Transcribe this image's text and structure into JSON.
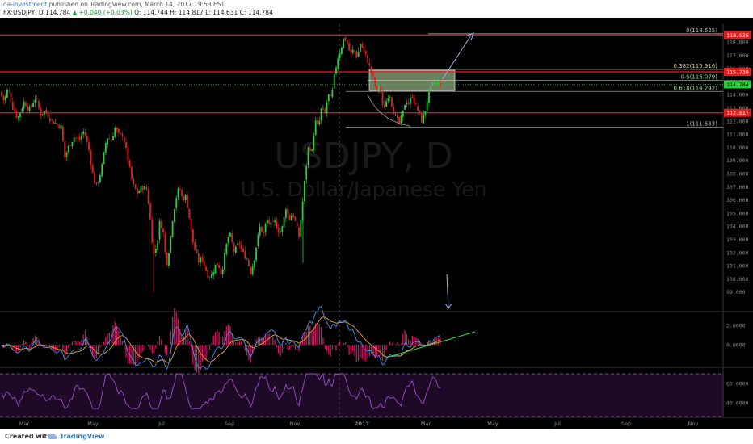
{
  "header": {
    "author": "oa-investment",
    "published": "published on TradingView.com, March 14, 2017 19:53 EST",
    "symbol": "FX:USDJPY, D",
    "last": "114.784",
    "change": "▲ +0.040 (+0.03%)",
    "ohlc": "O: 114.744  H: 114.817  L: 114.631  C: 114.784"
  },
  "watermark": {
    "symbol": "USDJPY, D",
    "name": "U.S. Dollar/Japanese Yen"
  },
  "footer": {
    "created_with": "Created with",
    "brand": "TradingView"
  },
  "colors": {
    "up": "#2ecc40",
    "down": "#e02020",
    "level": "#e02020",
    "fib": "#9a9a9a",
    "arrow": "#9db6e4",
    "macd": "#4a90e2",
    "signal": "#f0a030",
    "hist": "#c81d64",
    "rsi": "#9b4fc8",
    "box": "#c9e6b0"
  },
  "chart_data": [
    {
      "type": "candlestick",
      "ylim": [
        98.5,
        119.2
      ],
      "y_ticks": [
        "118.000",
        "117.000",
        "116.000",
        "115.000",
        "114.000",
        "113.000",
        "112.000",
        "111.000",
        "110.000",
        "109.000",
        "108.000",
        "107.000",
        "106.000",
        "105.000",
        "104.000",
        "103.000",
        "102.000",
        "101.000",
        "100.000",
        "99.000"
      ],
      "x_labels": [
        "Mar",
        "May",
        "Jul",
        "Sep",
        "Nov",
        "2017",
        "Mar",
        "May",
        "Jul",
        "Sep",
        "Nov"
      ],
      "horizontal_levels": [
        {
          "label": "118.536",
          "value": 118.536
        },
        {
          "label": "115.730",
          "value": 115.73
        },
        {
          "label": "112.617",
          "value": 112.617
        }
      ],
      "price_label": {
        "label": "114.784",
        "value": 114.784
      },
      "fibonacci": [
        {
          "label": "0(118.625)",
          "value": 118.625
        },
        {
          "label": "0.382(115.916)",
          "value": 115.916
        },
        {
          "label": "0.5(115.079)",
          "value": 115.079
        },
        {
          "label": "0.618(114.242)",
          "value": 114.242
        },
        {
          "label": "1(111.533)",
          "value": 111.533
        }
      ],
      "series_path": [
        [
          0,
          114.2
        ],
        [
          5,
          113.5
        ],
        [
          10,
          114.5
        ],
        [
          16,
          113.0
        ],
        [
          22,
          112.2
        ],
        [
          30,
          113.5
        ],
        [
          36,
          112.8
        ],
        [
          44,
          113.8
        ],
        [
          50,
          112.5
        ],
        [
          56,
          112.8
        ],
        [
          64,
          112.0
        ],
        [
          70,
          111.8
        ],
        [
          76,
          111.5
        ],
        [
          80,
          109.2
        ],
        [
          86,
          110.2
        ],
        [
          92,
          110.8
        ],
        [
          98,
          110.5
        ],
        [
          104,
          111.3
        ],
        [
          110,
          109.8
        ],
        [
          116,
          107.5
        ],
        [
          120,
          107.0
        ],
        [
          126,
          108.5
        ],
        [
          132,
          110.8
        ],
        [
          138,
          110.5
        ],
        [
          142,
          111.5
        ],
        [
          148,
          110.8
        ],
        [
          152,
          111.0
        ],
        [
          158,
          109.2
        ],
        [
          164,
          107.2
        ],
        [
          170,
          106.5
        ],
        [
          176,
          107.0
        ],
        [
          182,
          106.8
        ],
        [
          186,
          104.5
        ],
        [
          190,
          101.8
        ],
        [
          194,
          102.5
        ],
        [
          198,
          104.5
        ],
        [
          202,
          103.5
        ],
        [
          206,
          101.0
        ],
        [
          210,
          102.5
        ],
        [
          214,
          104.8
        ],
        [
          218,
          106.2
        ],
        [
          222,
          107.0
        ],
        [
          226,
          106.0
        ],
        [
          230,
          106.3
        ],
        [
          234,
          104.8
        ],
        [
          238,
          103.0
        ],
        [
          242,
          102.0
        ],
        [
          246,
          101.3
        ],
        [
          250,
          101.6
        ],
        [
          254,
          100.8
        ],
        [
          258,
          100.2
        ],
        [
          262,
          100.3
        ],
        [
          266,
          101.0
        ],
        [
          270,
          101.2
        ],
        [
          274,
          100.3
        ],
        [
          280,
          102.5
        ],
        [
          284,
          103.5
        ],
        [
          290,
          102.0
        ],
        [
          296,
          102.8
        ],
        [
          300,
          102.0
        ],
        [
          306,
          101.5
        ],
        [
          310,
          100.5
        ],
        [
          314,
          101.3
        ],
        [
          318,
          102.8
        ],
        [
          322,
          104.0
        ],
        [
          326,
          103.3
        ],
        [
          330,
          104.5
        ],
        [
          336,
          104.0
        ],
        [
          340,
          104.3
        ],
        [
          346,
          103.5
        ],
        [
          350,
          104.0
        ],
        [
          354,
          105.5
        ],
        [
          358,
          104.5
        ],
        [
          362,
          105.0
        ],
        [
          366,
          104.2
        ],
        [
          370,
          103.2
        ],
        [
          374,
          105.5
        ],
        [
          378,
          108.0
        ],
        [
          382,
          110.2
        ],
        [
          386,
          109.6
        ],
        [
          390,
          112.0
        ],
        [
          394,
          111.5
        ],
        [
          398,
          113.0
        ],
        [
          402,
          112.5
        ],
        [
          406,
          114.0
        ],
        [
          410,
          113.6
        ],
        [
          414,
          115.5
        ],
        [
          418,
          116.8
        ],
        [
          422,
          117.5
        ],
        [
          426,
          118.4
        ],
        [
          430,
          117.8
        ],
        [
          434,
          117.0
        ],
        [
          438,
          117.5
        ],
        [
          442,
          116.8
        ],
        [
          446,
          117.9
        ],
        [
          450,
          117.3
        ],
        [
          454,
          116.8
        ],
        [
          458,
          116.0
        ],
        [
          462,
          115.2
        ],
        [
          466,
          114.2
        ],
        [
          470,
          114.8
        ],
        [
          474,
          112.8
        ],
        [
          478,
          113.5
        ],
        [
          482,
          114.2
        ],
        [
          486,
          113.0
        ],
        [
          490,
          112.2
        ],
        [
          494,
          111.8
        ],
        [
          498,
          112.4
        ],
        [
          502,
          113.6
        ],
        [
          506,
          113.3
        ],
        [
          510,
          114.0
        ],
        [
          514,
          113.2
        ],
        [
          518,
          112.7
        ],
        [
          522,
          112.0
        ],
        [
          526,
          112.7
        ],
        [
          530,
          114.0
        ],
        [
          534,
          114.5
        ],
        [
          538,
          115.0
        ],
        [
          542,
          114.8
        ],
        [
          546,
          114.784
        ]
      ]
    },
    {
      "type": "line",
      "indicator": "MACD",
      "y_ticks": [
        "2.0000",
        "0.0000"
      ],
      "ylim": [
        -1.5,
        3.4
      ],
      "trendline": true
    },
    {
      "type": "line",
      "indicator": "RSI",
      "y_ticks": [
        "60.0000",
        "40.0000"
      ],
      "ylim": [
        33,
        75
      ],
      "bands": [
        70,
        30
      ]
    }
  ]
}
